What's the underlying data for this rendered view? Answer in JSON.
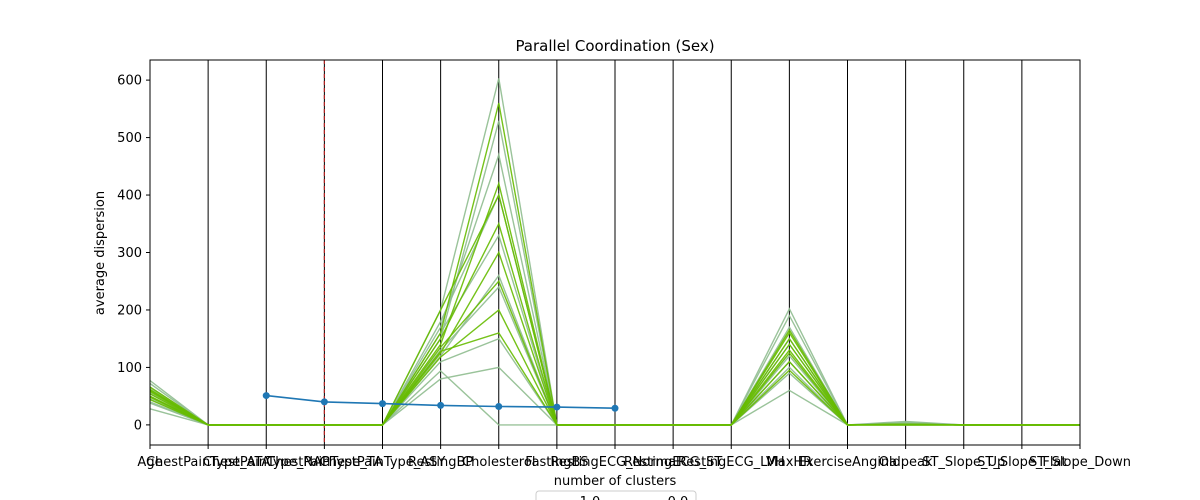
{
  "chart_data": {
    "type": "line",
    "title": "Parallel Coordination (Sex)",
    "xlabel": "number of clusters",
    "ylabel": "average dispersion",
    "ylim": [
      -35,
      635
    ],
    "y_ticks": [
      0,
      100,
      200,
      300,
      400,
      500,
      600
    ],
    "categories": [
      "Age",
      "ChestPainType_ATA",
      "ChestPainType_NAP",
      "ChestPainType_TA",
      "ChestPainType_ASY",
      "RestingBP",
      "Cholesterol",
      "FastingBS",
      "RestingECG_Normal",
      "RestingECG_ST",
      "RestingECG_LVH",
      "MaxHR",
      "ExerciseAngina",
      "Oldpeak",
      "ST_Slope_Up",
      "ST_Slope_Flat",
      "ST_Slope_Down"
    ],
    "highlight_axis": "ChestPainType_TA",
    "legend": {
      "position": "bottom-center",
      "entries": [
        "1.0",
        "0.0"
      ],
      "colors": [
        "#8fbc8f",
        "#66bb00"
      ]
    },
    "parallel_series": [
      {
        "name": "1.0",
        "color": "#8fbc8f",
        "values": [
          72,
          0,
          0,
          0,
          0,
          180,
          400,
          0,
          0,
          0,
          0,
          150,
          0,
          3,
          0,
          0,
          0
        ]
      },
      {
        "name": "1.0",
        "color": "#8fbc8f",
        "values": [
          38,
          0,
          0,
          0,
          0,
          120,
          260,
          0,
          0,
          0,
          0,
          110,
          0,
          1,
          0,
          0,
          0
        ]
      },
      {
        "name": "1.0",
        "color": "#8fbc8f",
        "values": [
          28,
          0,
          0,
          0,
          0,
          94,
          0,
          0,
          0,
          0,
          0,
          60,
          0,
          0,
          0,
          0,
          0
        ]
      },
      {
        "name": "1.0",
        "color": "#8fbc8f",
        "values": [
          77,
          0,
          0,
          0,
          0,
          200,
          603,
          0,
          0,
          0,
          0,
          202,
          0,
          6,
          0,
          0,
          0
        ]
      },
      {
        "name": "1.0",
        "color": "#8fbc8f",
        "values": [
          55,
          0,
          0,
          0,
          0,
          130,
          240,
          0,
          0,
          0,
          0,
          140,
          0,
          2,
          0,
          0,
          0
        ]
      },
      {
        "name": "1.0",
        "color": "#8fbc8f",
        "values": [
          60,
          0,
          0,
          0,
          0,
          150,
          529,
          0,
          0,
          0,
          0,
          170,
          0,
          4,
          0,
          0,
          0
        ]
      },
      {
        "name": "1.0",
        "color": "#8fbc8f",
        "values": [
          45,
          0,
          0,
          0,
          0,
          110,
          150,
          0,
          0,
          0,
          0,
          90,
          0,
          1,
          0,
          0,
          0
        ]
      },
      {
        "name": "1.0",
        "color": "#8fbc8f",
        "values": [
          65,
          0,
          0,
          0,
          0,
          80,
          100,
          0,
          0,
          0,
          0,
          100,
          0,
          0,
          0,
          0,
          0
        ]
      },
      {
        "name": "1.0",
        "color": "#8fbc8f",
        "values": [
          50,
          0,
          0,
          0,
          0,
          160,
          330,
          0,
          0,
          0,
          0,
          190,
          0,
          2,
          0,
          0,
          0
        ]
      },
      {
        "name": "1.0",
        "color": "#8fbc8f",
        "values": [
          40,
          0,
          0,
          0,
          0,
          170,
          470,
          0,
          0,
          0,
          0,
          120,
          0,
          1,
          0,
          0,
          0
        ]
      },
      {
        "name": "0.0",
        "color": "#66bb00",
        "values": [
          62,
          0,
          0,
          0,
          0,
          140,
          420,
          0,
          0,
          0,
          0,
          165,
          0,
          1,
          0,
          0,
          0
        ]
      },
      {
        "name": "0.0",
        "color": "#66bb00",
        "values": [
          50,
          0,
          0,
          0,
          0,
          125,
          300,
          0,
          0,
          0,
          0,
          125,
          0,
          1,
          0,
          0,
          0
        ]
      },
      {
        "name": "0.0",
        "color": "#66bb00",
        "values": [
          58,
          0,
          0,
          0,
          0,
          160,
          560,
          0,
          0,
          0,
          0,
          150,
          0,
          1,
          0,
          0,
          0
        ]
      },
      {
        "name": "0.0",
        "color": "#66bb00",
        "values": [
          44,
          0,
          0,
          0,
          0,
          118,
          200,
          0,
          0,
          0,
          0,
          95,
          0,
          0,
          0,
          0,
          0
        ]
      },
      {
        "name": "0.0",
        "color": "#66bb00",
        "values": [
          66,
          0,
          0,
          0,
          0,
          200,
          400,
          0,
          0,
          0,
          0,
          130,
          0,
          1,
          0,
          0,
          0
        ]
      },
      {
        "name": "0.0",
        "color": "#66bb00",
        "values": [
          54,
          0,
          0,
          0,
          0,
          135,
          250,
          0,
          0,
          0,
          0,
          110,
          0,
          0,
          0,
          0,
          0
        ]
      },
      {
        "name": "0.0",
        "color": "#66bb00",
        "values": [
          60,
          0,
          0,
          0,
          0,
          128,
          160,
          0,
          0,
          0,
          0,
          160,
          0,
          1,
          0,
          0,
          0
        ]
      },
      {
        "name": "0.0",
        "color": "#66bb00",
        "values": [
          48,
          0,
          0,
          0,
          0,
          150,
          350,
          0,
          0,
          0,
          0,
          140,
          0,
          0,
          0,
          0,
          0
        ]
      }
    ],
    "mean_line": {
      "color": "#1f77b4",
      "points": [
        {
          "x": "ChestPainType_NAP",
          "y": 51
        },
        {
          "x": "ChestPainType_TA",
          "y": 40
        },
        {
          "x": "ChestPainType_ASY",
          "y": 37
        },
        {
          "x": "RestingBP",
          "y": 34
        },
        {
          "x": "Cholesterol",
          "y": 32
        },
        {
          "x": "FastingBS",
          "y": 31
        },
        {
          "x": "RestingECG_Normal",
          "y": 29
        }
      ]
    }
  }
}
